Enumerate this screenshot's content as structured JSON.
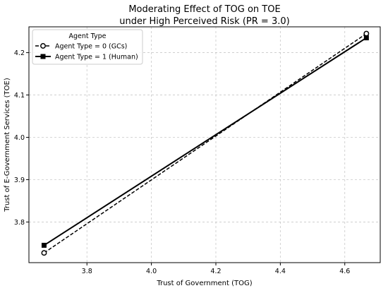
{
  "chart_data": {
    "type": "line",
    "title": "Moderating Effect of TOG on TOE",
    "subtitle": "under High Perceived Risk (PR = 3.0)",
    "xlabel": "Trust of Government (TOG)",
    "ylabel": "Trust of E-Government Services (TOE)",
    "xlim": [
      3.62,
      4.71
    ],
    "ylim": [
      3.704,
      4.261
    ],
    "xticks": [
      3.8,
      4.0,
      4.2,
      4.4,
      4.6
    ],
    "yticks": [
      3.8,
      3.9,
      4.0,
      4.1,
      4.2
    ],
    "xtick_labels": [
      "3.8",
      "4.0",
      "4.2",
      "4.4",
      "4.6"
    ],
    "ytick_labels": [
      "3.8",
      "3.9",
      "4.0",
      "4.1",
      "4.2"
    ],
    "grid": true,
    "legend": {
      "title": "Agent Type",
      "placement": "top-left"
    },
    "series": [
      {
        "name": "Agent Type = 0 (GCs)",
        "x": [
          3.667,
          4.667
        ],
        "y": [
          3.727,
          4.245
        ],
        "line_style": "dashed",
        "marker": "open-circle",
        "color": "#000000"
      },
      {
        "name": "Agent Type = 1 (Human)",
        "x": [
          3.667,
          4.667
        ],
        "y": [
          3.745,
          4.235
        ],
        "line_style": "solid",
        "marker": "filled-square",
        "color": "#000000"
      }
    ]
  }
}
